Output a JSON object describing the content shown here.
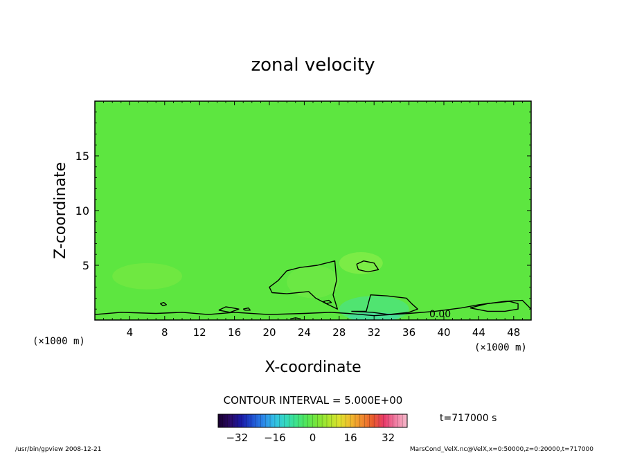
{
  "chart_data": {
    "type": "heatmap",
    "title": "zonal velocity",
    "xlabel": "X-coordinate",
    "ylabel": "Z-coordinate",
    "x_units_left": "(×1000 m)",
    "x_units_right": "(×1000 m)",
    "xlim": [
      0,
      50
    ],
    "ylim": [
      0,
      20
    ],
    "x_ticks": [
      4,
      8,
      12,
      16,
      20,
      24,
      28,
      32,
      36,
      40,
      44,
      48
    ],
    "y_ticks": [
      5,
      10,
      15
    ],
    "contour_interval_text": "CONTOUR INTERVAL = 5.000E+00",
    "contour_label": "0.00",
    "time_text": "t=717000 s",
    "colorbar": {
      "range": [
        -40,
        40
      ],
      "ticks": [
        -32,
        -16,
        0,
        16,
        32
      ],
      "colors": [
        "#1a0033",
        "#2a0a66",
        "#1a1aa6",
        "#1f4fd1",
        "#2b86e8",
        "#33bfe6",
        "#33d9c0",
        "#3de38a",
        "#55e655",
        "#7fe636",
        "#b0e62e",
        "#e0e02e",
        "#f0b82e",
        "#f08a2e",
        "#e85a2e",
        "#e83a6a",
        "#f07aa0",
        "#f5b5c8"
      ]
    },
    "field": {
      "background": "#5de640",
      "zones": [
        {
          "cx": 30.5,
          "cy": 5.2,
          "rx": 2.5,
          "ry": 1.0,
          "color": "#80ec48"
        },
        {
          "cx": 25,
          "cy": 3.5,
          "rx": 3,
          "ry": 1.5,
          "color": "#6de845"
        },
        {
          "cx": 32,
          "cy": 1.0,
          "rx": 4,
          "ry": 1.2,
          "color": "#4ee37a"
        },
        {
          "cx": 32,
          "cy": 0.3,
          "rx": 3,
          "ry": 0.4,
          "color": "#46dd9a"
        },
        {
          "cx": 6,
          "cy": 4,
          "rx": 4,
          "ry": 1.2,
          "color": "#72e842"
        }
      ]
    },
    "contours": [
      [
        [
          0,
          0.5
        ],
        [
          3,
          0.7
        ],
        [
          7,
          0.6
        ],
        [
          10,
          0.7
        ],
        [
          13,
          0.5
        ],
        [
          16,
          0.7
        ],
        [
          20,
          0.5
        ],
        [
          24,
          0.6
        ],
        [
          27,
          0.7
        ],
        [
          29,
          0.6
        ],
        [
          32,
          0.4
        ],
        [
          36,
          0.6
        ],
        [
          39,
          0.8
        ],
        [
          42,
          1.1
        ],
        [
          44,
          1.4
        ],
        [
          47,
          1.7
        ],
        [
          49,
          1.8
        ],
        [
          50,
          1.0
        ]
      ],
      [
        [
          21,
          3.6
        ],
        [
          20,
          3.0
        ],
        [
          20.3,
          2.5
        ],
        [
          22,
          2.4
        ],
        [
          24.5,
          2.6
        ],
        [
          25.3,
          2.0
        ],
        [
          26.5,
          1.5
        ],
        [
          27.8,
          1.0
        ],
        [
          27.3,
          2.3
        ],
        [
          27.7,
          3.6
        ],
        [
          27.5,
          5.4
        ],
        [
          25.5,
          5.0
        ],
        [
          23.5,
          4.8
        ],
        [
          22,
          4.5
        ],
        [
          21,
          3.6
        ]
      ],
      [
        [
          30,
          5.1
        ],
        [
          30.8,
          5.4
        ],
        [
          32,
          5.2
        ],
        [
          32.5,
          4.6
        ],
        [
          31.3,
          4.4
        ],
        [
          30.2,
          4.6
        ],
        [
          30,
          5.1
        ]
      ],
      [
        [
          29.4,
          0.8
        ],
        [
          31.1,
          0.8
        ],
        [
          31.6,
          2.3
        ],
        [
          33.5,
          2.2
        ],
        [
          35.7,
          2.0
        ],
        [
          36.3,
          1.5
        ],
        [
          37,
          1.0
        ],
        [
          36,
          0.7
        ],
        [
          33.7,
          0.5
        ],
        [
          31.8,
          0.7
        ],
        [
          29.4,
          0.8
        ]
      ],
      [
        [
          43,
          1.1
        ],
        [
          45,
          1.5
        ],
        [
          47.5,
          1.7
        ],
        [
          48.5,
          1.5
        ],
        [
          48.5,
          1.0
        ],
        [
          47,
          0.8
        ],
        [
          45,
          0.8
        ],
        [
          43,
          1.1
        ]
      ],
      [
        [
          14.2,
          0.9
        ],
        [
          15,
          1.2
        ],
        [
          15.8,
          1.1
        ],
        [
          16.5,
          1.0
        ],
        [
          15.5,
          0.7
        ],
        [
          14.2,
          0.9
        ]
      ],
      [
        [
          7.5,
          1.5
        ],
        [
          7.9,
          1.6
        ],
        [
          8.2,
          1.4
        ],
        [
          7.8,
          1.3
        ],
        [
          7.5,
          1.5
        ]
      ],
      [
        [
          17,
          1.0
        ],
        [
          17.6,
          1.1
        ],
        [
          17.8,
          0.9
        ],
        [
          17.2,
          0.9
        ],
        [
          17,
          1.0
        ]
      ],
      [
        [
          26.2,
          1.7
        ],
        [
          26.8,
          1.8
        ],
        [
          27.1,
          1.6
        ],
        [
          26.5,
          1.5
        ],
        [
          26.2,
          1.7
        ]
      ],
      [
        [
          22.4,
          0.1
        ],
        [
          23,
          0.2
        ],
        [
          23.6,
          0.1
        ]
      ]
    ]
  },
  "footer": {
    "left": "/usr/bin/gpview   2008-12-21",
    "right": "MarsCond_VelX.nc@VelX,x=0:50000,z=0:20000,t=717000"
  }
}
